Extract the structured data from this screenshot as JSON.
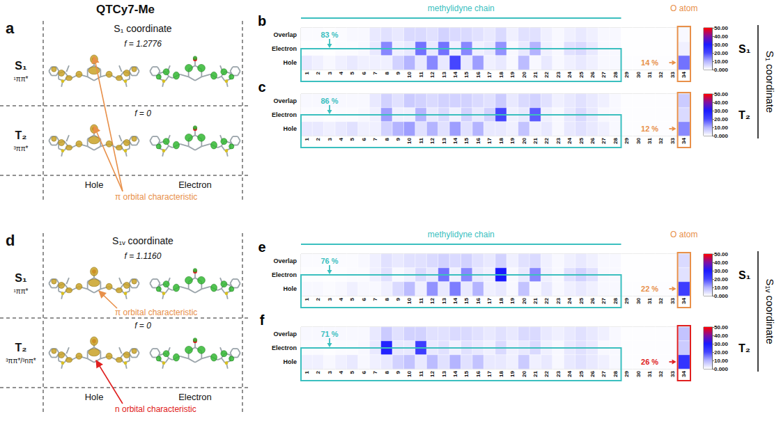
{
  "title": "QTCy7-Me",
  "panels": [
    {
      "letter": "a",
      "heading": "S₁ coordinate",
      "rows": [
        {
          "state": "S₁",
          "character": "¹ππ*",
          "f": "f = 1.2776"
        },
        {
          "state": "T₂",
          "character": "³ππ*",
          "f": "f = 0"
        }
      ],
      "columns": [
        "Hole",
        "Electron"
      ],
      "note": {
        "text": "π orbital characteristic",
        "color": "#e8904a"
      }
    },
    {
      "letter": "d",
      "heading": "S₁ᵥ coordinate",
      "rows": [
        {
          "state": "S₁",
          "character": "¹ππ*",
          "f": "f = 1.1160",
          "note": {
            "text": "π orbital characteristic",
            "color": "#e8904a"
          }
        },
        {
          "state": "T₂",
          "character": "³ππ*/³nπ*",
          "f": "f = 0",
          "note": {
            "text": "n orbital characteristic",
            "color": "#e02020"
          }
        }
      ],
      "columns": [
        "Hole",
        "Electron"
      ]
    }
  ],
  "chart_data": [
    {
      "type": "heatmap",
      "letter": "b",
      "state": "S₁",
      "group": "S₁ coordinate",
      "header": {
        "chain": "methylidyne chain",
        "atom": "O atom"
      },
      "x": [
        1,
        2,
        3,
        4,
        5,
        6,
        7,
        8,
        9,
        10,
        11,
        12,
        13,
        14,
        15,
        16,
        17,
        18,
        19,
        20,
        21,
        22,
        23,
        24,
        25,
        26,
        27,
        28,
        29,
        30,
        31,
        32,
        33,
        34
      ],
      "rows": [
        "Overlap",
        "Electron",
        "Hole"
      ],
      "cells": [
        [
          0.5,
          0.5,
          0.3,
          0.5,
          1,
          1,
          3,
          4,
          3,
          5,
          5,
          4,
          6,
          5,
          5,
          4,
          3,
          5,
          2,
          4,
          4,
          2,
          1,
          2,
          3,
          2,
          1,
          1,
          0.2,
          0.2,
          0.2,
          0.2,
          0.2,
          1
        ],
        [
          0.3,
          0.3,
          0.2,
          0.5,
          0.5,
          1,
          3,
          14,
          2,
          3,
          16,
          3,
          16,
          2,
          14,
          2,
          3,
          13,
          1,
          3,
          10,
          2,
          1,
          4,
          5,
          3,
          1,
          1,
          0.2,
          0.2,
          0.2,
          0.2,
          0.2,
          2
        ],
        [
          3,
          2,
          1,
          2,
          3,
          2,
          2,
          2,
          6,
          10,
          3,
          14,
          3,
          20,
          3,
          12,
          2,
          3,
          1,
          9,
          1,
          3,
          1,
          2,
          3,
          2,
          1,
          1,
          0.3,
          0.3,
          0.3,
          0.3,
          0.3,
          16
        ]
      ],
      "colorbar": {
        "range": [
          0,
          50
        ],
        "ticks": [
          {
            "value": 0,
            "label": "0.000"
          },
          {
            "value": 10,
            "label": "10.00"
          },
          {
            "value": 20,
            "label": "20.00"
          },
          {
            "value": 30,
            "label": "30.00"
          },
          {
            "value": 40,
            "label": "40.00"
          },
          {
            "value": 50,
            "label": "50.00"
          }
        ]
      },
      "chain_share": {
        "text": "83 %",
        "color": "#3bbfbf"
      },
      "atom_share": {
        "text": "14 %",
        "color": "#e8904a"
      }
    },
    {
      "type": "heatmap",
      "letter": "c",
      "state": "T₂",
      "group": "S₁ coordinate",
      "x": [
        1,
        2,
        3,
        4,
        5,
        6,
        7,
        8,
        9,
        10,
        11,
        12,
        13,
        14,
        15,
        16,
        17,
        18,
        19,
        20,
        21,
        22,
        23,
        24,
        25,
        26,
        27,
        28,
        29,
        30,
        31,
        32,
        33,
        34
      ],
      "rows": [
        "Overlap",
        "Electron",
        "Hole"
      ],
      "cells": [
        [
          1,
          1,
          1,
          1,
          1,
          1,
          3,
          6,
          4,
          7,
          6,
          5,
          6,
          6,
          6,
          5,
          4,
          7,
          3,
          5,
          6,
          4,
          2,
          3,
          4,
          3,
          2,
          1,
          0.3,
          0.3,
          0.3,
          0.3,
          0.3,
          7
        ],
        [
          0.5,
          0.5,
          0.3,
          0.5,
          0.5,
          1,
          2,
          12,
          2,
          2,
          10,
          3,
          5,
          2,
          6,
          3,
          6,
          20,
          2,
          3,
          18,
          2,
          1,
          3,
          5,
          3,
          1,
          1,
          0.3,
          0.3,
          0.3,
          0.3,
          0.3,
          5
        ],
        [
          3,
          3,
          2,
          3,
          4,
          2,
          2,
          6,
          10,
          12,
          4,
          10,
          4,
          12,
          4,
          10,
          3,
          3,
          2,
          8,
          2,
          3,
          1,
          3,
          4,
          3,
          2,
          1,
          0.3,
          0.3,
          0.3,
          0.3,
          0.3,
          14
        ]
      ],
      "colorbar": {
        "range": [
          0,
          50
        ],
        "ticks": [
          {
            "value": 0,
            "label": "0.000"
          },
          {
            "value": 10,
            "label": "10.00"
          },
          {
            "value": 20,
            "label": "20.00"
          },
          {
            "value": 30,
            "label": "30.00"
          },
          {
            "value": 40,
            "label": "40.00"
          },
          {
            "value": 50,
            "label": "50.00"
          }
        ]
      },
      "chain_share": {
        "text": "86 %",
        "color": "#3bbfbf"
      },
      "atom_share": {
        "text": "12 %",
        "color": "#e8904a"
      }
    },
    {
      "type": "heatmap",
      "letter": "e",
      "state": "S₁",
      "group": "S₁ᵥ coordinate",
      "header": {
        "chain": "methylidyne chain",
        "atom": "O atom"
      },
      "x": [
        1,
        2,
        3,
        4,
        5,
        6,
        7,
        8,
        9,
        10,
        11,
        12,
        13,
        14,
        15,
        16,
        17,
        18,
        19,
        20,
        21,
        22,
        23,
        24,
        25,
        26,
        27,
        28,
        29,
        30,
        31,
        32,
        33,
        34
      ],
      "rows": [
        "Overlap",
        "Electron",
        "Hole"
      ],
      "cells": [
        [
          0.5,
          0.5,
          0.3,
          0.5,
          0.5,
          1,
          2,
          4,
          3,
          4,
          4,
          5,
          6,
          5,
          6,
          4,
          3,
          6,
          2,
          4,
          5,
          2,
          1,
          2,
          3,
          2,
          1,
          1,
          0.2,
          0.2,
          0.2,
          0.2,
          0.2,
          5
        ],
        [
          0.3,
          0.3,
          0.2,
          0.3,
          0.5,
          0.5,
          2,
          4,
          1,
          2,
          5,
          3,
          16,
          2,
          14,
          3,
          2,
          30,
          1,
          3,
          14,
          2,
          1,
          4,
          6,
          4,
          1,
          1,
          0.2,
          0.2,
          0.2,
          0.2,
          0.2,
          4
        ],
        [
          1,
          1,
          0.5,
          1,
          2,
          1,
          1,
          2,
          5,
          9,
          2,
          13,
          3,
          15,
          3,
          10,
          2,
          3,
          1,
          8,
          1,
          3,
          1,
          2,
          3,
          2,
          1,
          1,
          0.3,
          0.3,
          0.3,
          0.3,
          0.3,
          22
        ]
      ],
      "colorbar": {
        "range": [
          0,
          50
        ],
        "ticks": [
          {
            "value": 0,
            "label": "0.000"
          },
          {
            "value": 10,
            "label": "10.00"
          },
          {
            "value": 20,
            "label": "20.00"
          },
          {
            "value": 30,
            "label": "30.00"
          },
          {
            "value": 40,
            "label": "40.00"
          },
          {
            "value": 50,
            "label": "50.00"
          }
        ]
      },
      "chain_share": {
        "text": "76 %",
        "color": "#3bbfbf"
      },
      "atom_share": {
        "text": "22 %",
        "color": "#e8904a"
      }
    },
    {
      "type": "heatmap",
      "letter": "f",
      "state": "T₂",
      "group": "S₁ᵥ coordinate",
      "x": [
        1,
        2,
        3,
        4,
        5,
        6,
        7,
        8,
        9,
        10,
        11,
        12,
        13,
        14,
        15,
        16,
        17,
        18,
        19,
        20,
        21,
        22,
        23,
        24,
        25,
        26,
        27,
        28,
        29,
        30,
        31,
        32,
        33,
        34
      ],
      "rows": [
        "Overlap",
        "Electron",
        "Hole"
      ],
      "cells": [
        [
          1,
          1,
          1,
          1,
          1,
          1,
          3,
          7,
          4,
          6,
          6,
          4,
          4,
          5,
          5,
          4,
          3,
          4,
          3,
          5,
          5,
          3,
          2,
          3,
          4,
          3,
          2,
          1,
          0.3,
          0.3,
          0.3,
          0.3,
          0.3,
          8
        ],
        [
          0.5,
          0.5,
          0.3,
          0.5,
          0.5,
          1,
          3,
          28,
          3,
          3,
          22,
          3,
          4,
          2,
          4,
          3,
          2,
          5,
          2,
          3,
          5,
          2,
          1,
          3,
          4,
          3,
          1,
          1,
          0.3,
          0.3,
          0.3,
          0.3,
          0.3,
          7
        ],
        [
          2,
          2,
          1,
          2,
          3,
          1,
          2,
          3,
          6,
          8,
          3,
          9,
          4,
          10,
          4,
          8,
          3,
          3,
          2,
          7,
          2,
          3,
          1,
          3,
          4,
          3,
          2,
          1,
          0.3,
          0.3,
          0.3,
          0.3,
          0.3,
          24
        ]
      ],
      "colorbar": {
        "range": [
          0,
          50
        ],
        "ticks": [
          {
            "value": 0,
            "label": "0.000"
          },
          {
            "value": 10,
            "label": "10.00"
          },
          {
            "value": 20,
            "label": "20.00"
          },
          {
            "value": 30,
            "label": "30.00"
          },
          {
            "value": 40,
            "label": "40.00"
          },
          {
            "value": 50,
            "label": "50.00"
          }
        ]
      },
      "chain_share": {
        "text": "71 %",
        "color": "#3bbfbf"
      },
      "atom_share": {
        "text": "26 %",
        "color": "#e02020"
      }
    }
  ]
}
